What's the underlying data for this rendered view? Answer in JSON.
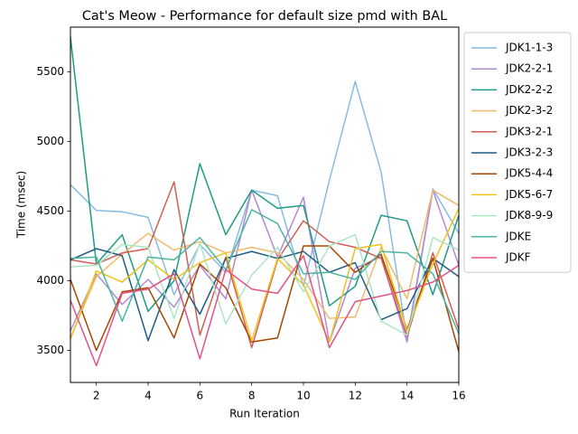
{
  "chart_data": {
    "type": "line",
    "title": "Cat's Meow - Performance for default size pmd with BAL",
    "xlabel": "Run Iteration",
    "ylabel": "Time (msec)",
    "xlim": [
      1,
      16
    ],
    "ylim": [
      3270,
      5820
    ],
    "xticks": [
      2,
      4,
      6,
      8,
      10,
      12,
      14,
      16
    ],
    "yticks": [
      3500,
      4000,
      4500,
      5000,
      5500
    ],
    "grid": false,
    "legend_position": "outside-right",
    "x": [
      1,
      2,
      3,
      4,
      5,
      6,
      7,
      8,
      9,
      10,
      11,
      12,
      13,
      14,
      15,
      16
    ],
    "series": [
      {
        "name": "JDK1-1-3",
        "color": "#86bce3",
        "values": [
          4690,
          4505,
          4495,
          4455,
          3900,
          4260,
          4060,
          4650,
          4610,
          3960,
          4720,
          5430,
          4780,
          3580,
          4660,
          4340
        ]
      },
      {
        "name": "JDK2-2-1",
        "color": "#b389d3",
        "values": [
          3640,
          4050,
          3830,
          4010,
          3810,
          4110,
          3870,
          4650,
          4170,
          4600,
          3560,
          4090,
          4170,
          3560,
          4650,
          4110
        ]
      },
      {
        "name": "JDK2-2-2",
        "color": "#1e9c84",
        "values": [
          5750,
          4120,
          4330,
          3780,
          4000,
          4840,
          4330,
          4650,
          4520,
          4540,
          3820,
          3960,
          4470,
          4430,
          3900,
          4470
        ]
      },
      {
        "name": "JDK2-3-2",
        "color": "#f2ba6b",
        "values": [
          3590,
          4030,
          4190,
          4340,
          4220,
          4280,
          4200,
          4240,
          4200,
          4010,
          3730,
          3740,
          4240,
          3870,
          4650,
          4540
        ]
      },
      {
        "name": "JDK3-2-1",
        "color": "#d35f55",
        "values": [
          4150,
          4120,
          4200,
          4230,
          4710,
          3610,
          4170,
          3520,
          4150,
          4430,
          4280,
          4240,
          4160,
          3600,
          4200,
          3650
        ]
      },
      {
        "name": "JDK3-2-3",
        "color": "#1f5d85",
        "values": [
          4150,
          4230,
          4180,
          3570,
          4080,
          3760,
          4160,
          4210,
          4160,
          4210,
          4060,
          4130,
          3720,
          3800,
          4160,
          4030
        ]
      },
      {
        "name": "JDK5-4-4",
        "color": "#a94602",
        "values": [
          4010,
          3500,
          3920,
          3950,
          3590,
          4120,
          3950,
          3560,
          3590,
          4250,
          4250,
          4060,
          4190,
          3650,
          4160,
          3490
        ]
      },
      {
        "name": "JDK5-6-7",
        "color": "#f0c21a",
        "values": [
          3580,
          4070,
          3990,
          4150,
          4010,
          4130,
          4200,
          3570,
          4160,
          3970,
          3560,
          4230,
          4260,
          3640,
          4120,
          4520
        ]
      },
      {
        "name": "JDK8-9-9",
        "color": "#ace6c4",
        "values": [
          4100,
          4110,
          4260,
          4240,
          3730,
          4270,
          3690,
          4040,
          4240,
          3920,
          4250,
          4330,
          3710,
          3610,
          4310,
          4220
        ]
      },
      {
        "name": "JDKE",
        "color": "#4cb4a2",
        "values": [
          4160,
          4170,
          3710,
          4170,
          4150,
          4310,
          4080,
          4510,
          4410,
          4050,
          4060,
          4010,
          4210,
          4200,
          4050,
          3620
        ]
      },
      {
        "name": "JDKF",
        "color": "#e2528a",
        "values": [
          3860,
          3390,
          3910,
          3940,
          4050,
          3440,
          4080,
          3940,
          3910,
          4180,
          3520,
          3850,
          3890,
          3930,
          3990,
          4110
        ]
      }
    ]
  }
}
